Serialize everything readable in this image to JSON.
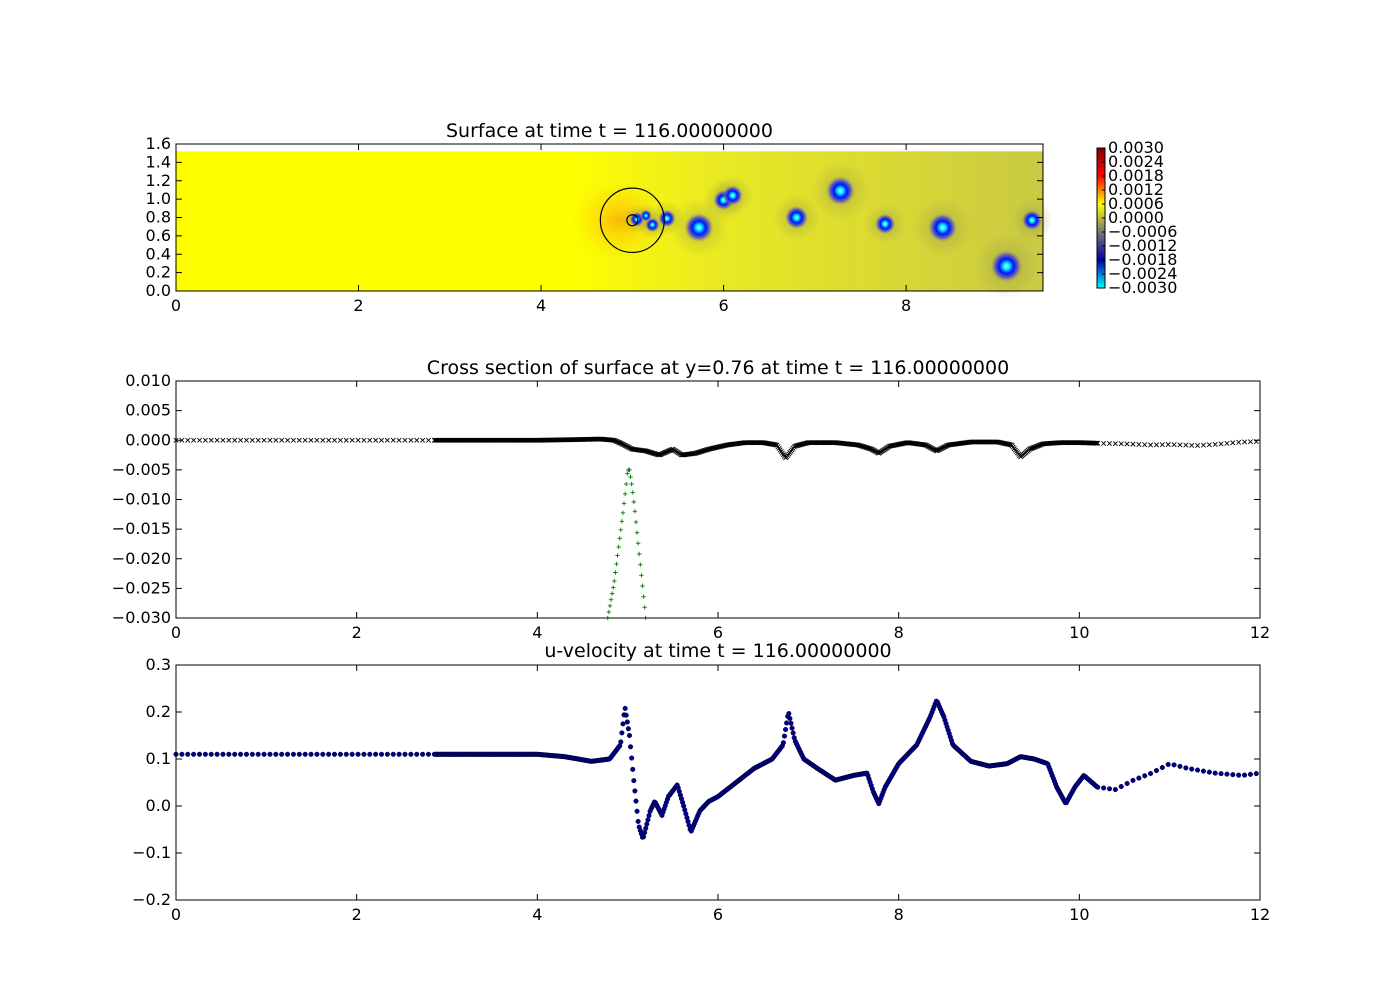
{
  "chart_data": [
    {
      "type": "heatmap",
      "title": "Surface at time t =   116.00000000",
      "xlim": [
        0,
        9.5
      ],
      "ylim": [
        0,
        1.6
      ],
      "xticks": [
        0,
        2,
        4,
        6,
        8
      ],
      "xtick_labels": [
        "0",
        "2",
        "4",
        "6",
        "8"
      ],
      "yticks": [
        0.0,
        0.2,
        0.4,
        0.6,
        0.8,
        1.0,
        1.2,
        1.4,
        1.6
      ],
      "ytick_labels": [
        "0.0",
        "0.2",
        "0.4",
        "0.6",
        "0.8",
        "1.0",
        "1.2",
        "1.4",
        "1.6"
      ],
      "domain": {
        "x": [
          0,
          9.5
        ],
        "y": [
          0,
          1.52
        ]
      },
      "background_value": 0.0,
      "colormap": [
        "#00ffff",
        "#0000aa",
        "#777777",
        "#ffff00",
        "#ff0000",
        "#800000"
      ],
      "colorbar": {
        "range": [
          -0.003,
          0.003
        ],
        "ticks": [
          0.003,
          0.0024,
          0.0018,
          0.0012,
          0.0006,
          0.0,
          -0.0006,
          -0.0012,
          -0.0018,
          -0.0024,
          -0.003
        ],
        "tick_labels": [
          "0.0030",
          "0.0024",
          "0.0018",
          "0.0012",
          "0.0006",
          "0.0000",
          "−0.0006",
          "−0.0012",
          "−0.0018",
          "−0.0024",
          "−0.0030"
        ]
      },
      "vortices": [
        {
          "x": 5.05,
          "y": 0.78,
          "r": 0.05
        },
        {
          "x": 5.15,
          "y": 0.82,
          "r": 0.04
        },
        {
          "x": 5.22,
          "y": 0.72,
          "r": 0.05
        },
        {
          "x": 5.38,
          "y": 0.79,
          "r": 0.06
        },
        {
          "x": 5.73,
          "y": 0.69,
          "r": 0.1
        },
        {
          "x": 6.0,
          "y": 0.99,
          "r": 0.07
        },
        {
          "x": 6.1,
          "y": 1.04,
          "r": 0.07
        },
        {
          "x": 6.8,
          "y": 0.8,
          "r": 0.08
        },
        {
          "x": 7.28,
          "y": 1.09,
          "r": 0.1
        },
        {
          "x": 7.77,
          "y": 0.73,
          "r": 0.07
        },
        {
          "x": 8.4,
          "y": 0.69,
          "r": 0.1
        },
        {
          "x": 9.1,
          "y": 0.27,
          "r": 0.11
        },
        {
          "x": 9.38,
          "y": 0.77,
          "r": 0.07
        }
      ],
      "circles": [
        {
          "x": 5.0,
          "y": 0.77,
          "r": 0.35
        },
        {
          "x": 5.0,
          "y": 0.77,
          "r": 0.06
        }
      ]
    },
    {
      "type": "scatter",
      "title": "Cross section of surface at y=0.76 at time t =   116.00000000",
      "xlim": [
        0,
        12
      ],
      "ylim": [
        -0.03,
        0.01
      ],
      "xticks": [
        0,
        2,
        4,
        6,
        8,
        10,
        12
      ],
      "xtick_labels": [
        "0",
        "2",
        "4",
        "6",
        "8",
        "10",
        "12"
      ],
      "yticks": [
        0.01,
        0.005,
        0.0,
        -0.005,
        -0.01,
        -0.015,
        -0.02,
        -0.025,
        -0.03
      ],
      "ytick_labels": [
        "0.010",
        "0.005",
        "0.000",
        "−0.005",
        "−0.010",
        "−0.015",
        "−0.020",
        "−0.025",
        "−0.030"
      ],
      "series": [
        {
          "marker": "x",
          "color": "#000000",
          "x": [
            0,
            0.5,
            1,
            1.5,
            2,
            2.5,
            2.8,
            3.5,
            4.0,
            4.4,
            4.7,
            4.85,
            4.95,
            5.05,
            5.2,
            5.35,
            5.5,
            5.6,
            5.75,
            5.9,
            6.1,
            6.3,
            6.5,
            6.65,
            6.75,
            6.85,
            7.0,
            7.3,
            7.55,
            7.7,
            7.78,
            7.9,
            8.1,
            8.3,
            8.42,
            8.55,
            8.8,
            9.1,
            9.25,
            9.35,
            9.45,
            9.6,
            9.8,
            10.0,
            10.2,
            10.5,
            10.8,
            11.0,
            11.3,
            11.5,
            11.8,
            12.0
          ],
          "y": [
            0.0,
            0.0,
            0.0,
            0.0,
            0.0,
            0.0,
            0.0,
            0.0,
            0.0,
            0.0001,
            0.0002,
            0.0,
            -0.0007,
            -0.0015,
            -0.0018,
            -0.0025,
            -0.0015,
            -0.0025,
            -0.0022,
            -0.0015,
            -0.0008,
            -0.0004,
            -0.0004,
            -0.0008,
            -0.003,
            -0.001,
            -0.0004,
            -0.0004,
            -0.0008,
            -0.0015,
            -0.0022,
            -0.001,
            -0.0004,
            -0.0008,
            -0.0018,
            -0.0008,
            -0.0003,
            -0.0003,
            -0.0008,
            -0.0028,
            -0.0015,
            -0.0006,
            -0.0004,
            -0.0004,
            -0.0005,
            -0.0006,
            -0.0008,
            -0.0007,
            -0.0009,
            -0.0007,
            -0.0003,
            -0.0002
          ]
        },
        {
          "marker": "+",
          "color": "#008000",
          "x": [
            4.78,
            4.85,
            4.9,
            4.95,
            4.98,
            5.0,
            5.02,
            5.05,
            5.08,
            5.12,
            5.16,
            5.2
          ],
          "y": [
            -0.03,
            -0.024,
            -0.018,
            -0.012,
            -0.008,
            -0.005,
            -0.005,
            -0.008,
            -0.012,
            -0.018,
            -0.024,
            -0.03
          ]
        }
      ]
    },
    {
      "type": "scatter",
      "title": "u-velocity at time t =   116.00000000",
      "xlim": [
        0,
        12
      ],
      "ylim": [
        -0.2,
        0.3
      ],
      "xticks": [
        0,
        2,
        4,
        6,
        8,
        10,
        12
      ],
      "xtick_labels": [
        "0",
        "2",
        "4",
        "6",
        "8",
        "10",
        "12"
      ],
      "yticks": [
        0.3,
        0.2,
        0.1,
        0.0,
        -0.1,
        -0.2
      ],
      "ytick_labels": [
        "0.3",
        "0.2",
        "0.1",
        "0.0",
        "−0.1",
        "−0.2"
      ],
      "series": [
        {
          "marker": "o",
          "color": "#00008b",
          "x": [
            0,
            1,
            2,
            2.8,
            3.5,
            4.0,
            4.3,
            4.6,
            4.8,
            4.92,
            4.97,
            5.02,
            5.07,
            5.12,
            5.17,
            5.25,
            5.3,
            5.38,
            5.45,
            5.55,
            5.62,
            5.7,
            5.8,
            5.9,
            6.0,
            6.2,
            6.4,
            6.6,
            6.72,
            6.78,
            6.85,
            6.95,
            7.1,
            7.3,
            7.5,
            7.65,
            7.72,
            7.78,
            7.85,
            8.0,
            8.2,
            8.35,
            8.42,
            8.5,
            8.6,
            8.8,
            9.0,
            9.2,
            9.35,
            9.5,
            9.65,
            9.75,
            9.85,
            9.95,
            10.05,
            10.2,
            10.4,
            10.6,
            10.8,
            11.0,
            11.2,
            11.5,
            11.8,
            12.0
          ],
          "y": [
            0.11,
            0.11,
            0.11,
            0.11,
            0.11,
            0.11,
            0.105,
            0.095,
            0.1,
            0.13,
            0.21,
            0.15,
            0.05,
            -0.04,
            -0.07,
            -0.01,
            0.01,
            -0.02,
            0.02,
            0.045,
            0.0,
            -0.055,
            -0.01,
            0.01,
            0.02,
            0.05,
            0.08,
            0.1,
            0.13,
            0.2,
            0.14,
            0.1,
            0.08,
            0.055,
            0.065,
            0.07,
            0.03,
            0.005,
            0.04,
            0.09,
            0.13,
            0.19,
            0.225,
            0.19,
            0.13,
            0.095,
            0.085,
            0.09,
            0.105,
            0.1,
            0.09,
            0.04,
            0.005,
            0.04,
            0.065,
            0.04,
            0.035,
            0.055,
            0.07,
            0.09,
            0.08,
            0.07,
            0.065,
            0.07
          ]
        }
      ]
    }
  ]
}
